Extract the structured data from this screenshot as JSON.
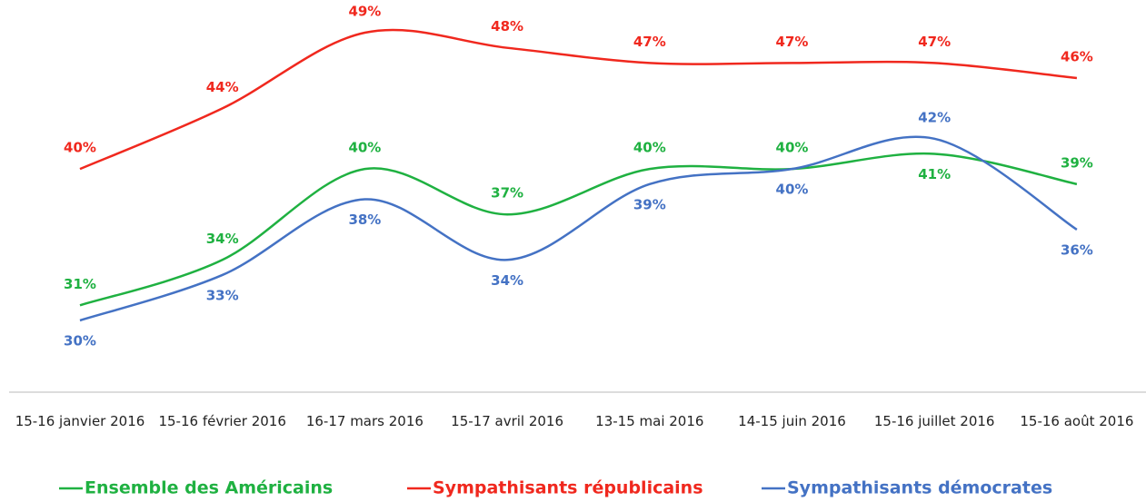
{
  "chart_data": {
    "type": "line",
    "categories": [
      "15-16 janvier 2016",
      "15-16 février 2016",
      "16-17 mars 2016",
      "15-17 avril 2016",
      "13-15 mai 2016",
      "14-15 juin 2016",
      "15-16 juillet 2016",
      "15-16 août 2016"
    ],
    "series": [
      {
        "name": "Ensemble des Américains",
        "color": "#1fb141",
        "values": [
          31,
          34,
          40,
          37,
          40,
          40,
          41,
          39
        ],
        "value_labels": [
          "31%",
          "34%",
          "40%",
          "37%",
          "40%",
          "40%",
          "41%",
          "39%"
        ]
      },
      {
        "name": "Sympathisants républicains",
        "color": "#f0281e",
        "values": [
          40,
          44,
          49,
          48,
          47,
          47,
          47,
          46
        ],
        "value_labels": [
          "40%",
          "44%",
          "49%",
          "48%",
          "47%",
          "47%",
          "47%",
          "46%"
        ]
      },
      {
        "name": "Sympathisants démocrates",
        "color": "#4472c4",
        "values": [
          30,
          33,
          38,
          34,
          39,
          40,
          42,
          36
        ],
        "value_labels": [
          "30%",
          "33%",
          "38%",
          "34%",
          "39%",
          "40%",
          "42%",
          "36%"
        ]
      }
    ],
    "legend": "bottom",
    "grid": false
  }
}
